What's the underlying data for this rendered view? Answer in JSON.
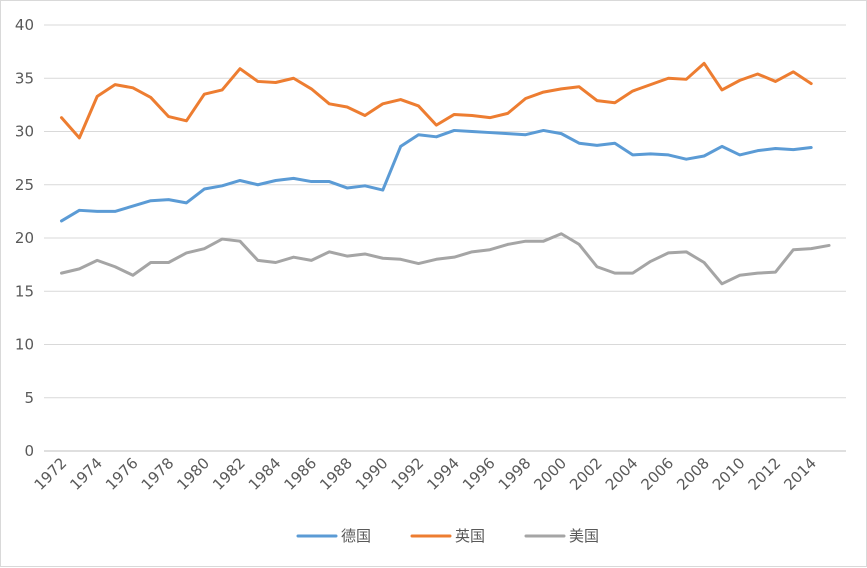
{
  "chart_data": {
    "type": "line",
    "title": "",
    "xlabel": "",
    "ylabel": "",
    "x": [
      1972,
      1973,
      1974,
      1975,
      1976,
      1977,
      1978,
      1979,
      1980,
      1981,
      1982,
      1983,
      1984,
      1985,
      1986,
      1987,
      1988,
      1989,
      1990,
      1991,
      1992,
      1993,
      1994,
      1995,
      1996,
      1997,
      1998,
      1999,
      2000,
      2001,
      2002,
      2003,
      2004,
      2005,
      2006,
      2007,
      2008,
      2009,
      2010,
      2011,
      2012,
      2013,
      2014,
      2015
    ],
    "x_tick_labels": [
      "1972",
      "1974",
      "1976",
      "1978",
      "1980",
      "1982",
      "1984",
      "1986",
      "1988",
      "1990",
      "1992",
      "1994",
      "1996",
      "1998",
      "2000",
      "2002",
      "2004",
      "2006",
      "2008",
      "2010",
      "2012",
      "2014"
    ],
    "ylim": [
      0,
      40
    ],
    "y_ticks": [
      "0",
      "5",
      "10",
      "15",
      "20",
      "25",
      "30",
      "35",
      "40"
    ],
    "grid": "horizontal",
    "legend_position": "bottom",
    "series": [
      {
        "name": "德国",
        "color": "#5b9bd5",
        "values": [
          21.6,
          22.6,
          22.5,
          22.5,
          23.0,
          23.5,
          23.6,
          23.3,
          24.6,
          24.9,
          25.4,
          25.0,
          25.4,
          25.6,
          25.3,
          25.3,
          24.7,
          24.9,
          24.5,
          28.6,
          29.7,
          29.5,
          30.1,
          30.0,
          29.9,
          29.8,
          29.7,
          30.1,
          29.8,
          28.9,
          28.7,
          28.9,
          27.8,
          27.9,
          27.8,
          27.4,
          27.7,
          28.6,
          27.8,
          28.2,
          28.4,
          28.3,
          28.5,
          null
        ]
      },
      {
        "name": "英国",
        "color": "#ed7d31",
        "values": [
          31.3,
          29.4,
          33.3,
          34.4,
          34.1,
          33.2,
          31.4,
          31.0,
          33.5,
          33.9,
          35.9,
          34.7,
          34.6,
          35.0,
          34.0,
          32.6,
          32.3,
          31.5,
          32.6,
          33.0,
          32.4,
          30.6,
          31.6,
          31.5,
          31.3,
          31.7,
          33.1,
          33.7,
          34.0,
          34.2,
          32.9,
          32.7,
          33.8,
          34.4,
          35.0,
          34.9,
          36.4,
          33.9,
          34.8,
          35.4,
          34.7,
          35.6,
          34.5,
          null
        ]
      },
      {
        "name": "美国",
        "color": "#a5a5a5",
        "values": [
          16.7,
          17.1,
          17.9,
          17.3,
          16.5,
          17.7,
          17.7,
          18.6,
          19.0,
          19.9,
          19.7,
          17.9,
          17.7,
          18.2,
          17.9,
          18.7,
          18.3,
          18.5,
          18.1,
          18.0,
          17.6,
          18.0,
          18.2,
          18.7,
          18.9,
          19.4,
          19.7,
          19.7,
          20.4,
          19.4,
          17.3,
          16.7,
          16.7,
          17.8,
          18.6,
          18.7,
          17.7,
          15.7,
          16.5,
          16.7,
          16.8,
          18.9,
          19.0,
          19.3
        ]
      }
    ]
  }
}
